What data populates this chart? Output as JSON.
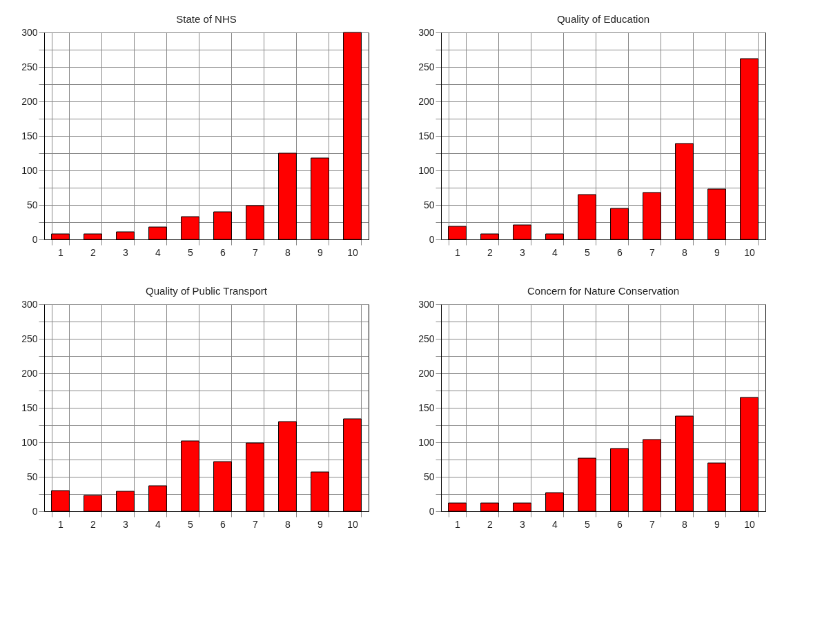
{
  "chart_data": [
    {
      "type": "bar",
      "title": "State of NHS",
      "categories": [
        "1",
        "2",
        "3",
        "4",
        "5",
        "6",
        "7",
        "8",
        "9",
        "10"
      ],
      "values": [
        8,
        8,
        11,
        18,
        33,
        40,
        49,
        125,
        118,
        300
      ],
      "color": "#ff0000",
      "ylim": [
        0,
        300
      ],
      "yticks": [
        0,
        {
          "value": 25,
          "label": null
        },
        50,
        {
          "value": 75,
          "label": null
        },
        100,
        {
          "value": 125,
          "label": null
        },
        150,
        {
          "value": 175,
          "label": null
        },
        200,
        {
          "value": 225,
          "label": null
        },
        250,
        {
          "value": 275,
          "label": null
        },
        300
      ],
      "grid": true
    },
    {
      "type": "bar",
      "title": "Quality of Education",
      "categories": [
        "1",
        "2",
        "3",
        "4",
        "5",
        "6",
        "7",
        "8",
        "9",
        "10"
      ],
      "values": [
        19,
        8,
        21,
        8,
        65,
        45,
        68,
        139,
        73,
        262
      ],
      "color": "#ff0000",
      "ylim": [
        0,
        300
      ],
      "yticks": [
        0,
        {
          "value": 25,
          "label": null
        },
        50,
        {
          "value": 75,
          "label": null
        },
        100,
        {
          "value": 125,
          "label": null
        },
        150,
        {
          "value": 175,
          "label": null
        },
        200,
        {
          "value": 225,
          "label": null
        },
        250,
        {
          "value": 275,
          "label": null
        },
        300
      ],
      "grid": true
    },
    {
      "type": "bar",
      "title": "Quality of Public Transport",
      "categories": [
        "1",
        "2",
        "3",
        "4",
        "5",
        "6",
        "7",
        "8",
        "9",
        "10"
      ],
      "values": [
        30,
        23,
        29,
        37,
        102,
        72,
        99,
        130,
        57,
        134
      ],
      "color": "#ff0000",
      "ylim": [
        0,
        300
      ],
      "yticks": [
        0,
        {
          "value": 25,
          "label": null
        },
        50,
        {
          "value": 75,
          "label": null
        },
        100,
        {
          "value": 125,
          "label": null
        },
        150,
        {
          "value": 175,
          "label": null
        },
        200,
        {
          "value": 225,
          "label": null
        },
        250,
        {
          "value": 275,
          "label": null
        },
        300
      ],
      "grid": true
    },
    {
      "type": "bar",
      "title": "Concern for Nature Conservation",
      "categories": [
        "1",
        "2",
        "3",
        "4",
        "5",
        "6",
        "7",
        "8",
        "9",
        "10"
      ],
      "values": [
        12,
        12,
        12,
        27,
        77,
        91,
        104,
        138,
        70,
        165
      ],
      "color": "#ff0000",
      "ylim": [
        0,
        300
      ],
      "yticks": [
        0,
        {
          "value": 25,
          "label": null
        },
        50,
        {
          "value": 75,
          "label": null
        },
        100,
        {
          "value": 125,
          "label": null
        },
        150,
        {
          "value": 175,
          "label": null
        },
        200,
        {
          "value": 225,
          "label": null
        },
        250,
        {
          "value": 275,
          "label": null
        },
        300
      ],
      "grid": true
    }
  ]
}
